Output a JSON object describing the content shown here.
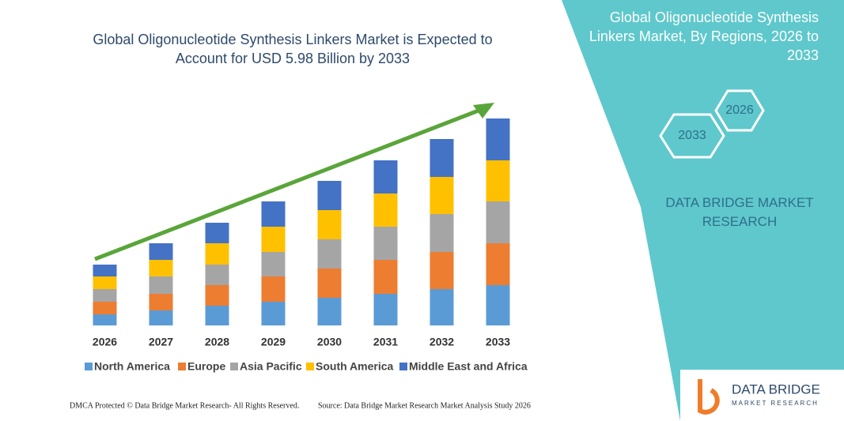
{
  "chart_data": {
    "type": "stacked-bar",
    "title": "Global Oligonucleotide Synthesis Linkers Market is Expected to Account for USD 5.98 Billion by 2033",
    "categories": [
      "2026",
      "2027",
      "2028",
      "2029",
      "2030",
      "2031",
      "2032",
      "2033"
    ],
    "series": [
      {
        "name": "North America",
        "color": "#5b9bd5",
        "values": [
          14,
          19,
          25,
          30,
          35,
          40,
          46,
          51
        ]
      },
      {
        "name": "Europe",
        "color": "#ed7d31",
        "values": [
          16,
          21,
          26,
          32,
          37,
          43,
          47,
          53
        ]
      },
      {
        "name": "Asia Pacific",
        "color": "#a5a5a5",
        "values": [
          16,
          22,
          26,
          31,
          37,
          42,
          48,
          53
        ]
      },
      {
        "name": "South America",
        "color": "#ffc000",
        "values": [
          16,
          21,
          27,
          32,
          37,
          42,
          47,
          52
        ]
      },
      {
        "name": "Middle East and Africa",
        "color": "#4472c4",
        "values": [
          15,
          21,
          26,
          32,
          37,
          42,
          48,
          53
        ]
      }
    ]
  },
  "panel": {
    "title": "Global Oligonucleotide Synthesis Linkers Market, By Regions, 2026 to 2033",
    "hex_back": "2026",
    "hex_front": "2033",
    "brand": "DATA BRIDGE MARKET RESEARCH"
  },
  "logo": {
    "name": "DATA BRIDGE",
    "tagline": "MARKET RESEARCH"
  },
  "footer": {
    "left": "DMCA Protected © Data Bridge Market Research- All Rights Reserved.",
    "right": "Source: Data Bridge Market Research Market Analysis Study 2026"
  }
}
